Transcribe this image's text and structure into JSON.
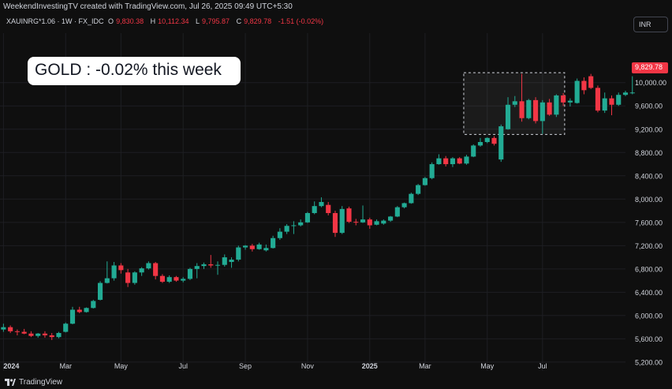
{
  "header": {
    "created_by": "WeekendInvestingTV created with TradingView.com, Jul 26, 2025 09:49 UTC+5:30",
    "symbol": "XAUINRG*1.06 · 1W · FX_IDC",
    "open_label": "O",
    "open_value": "9,830.38",
    "high_label": "H",
    "high_value": "10,112.34",
    "low_label": "L",
    "low_value": "9,795.87",
    "close_label": "C",
    "close_value": "9,829.78",
    "change": "-1.51 (-0.02%)",
    "currency": "INR"
  },
  "annotation": {
    "headline": "GOLD : -0.02% this week"
  },
  "price_tag": "9,829.78",
  "footer": {
    "brand": "TradingView"
  },
  "colors": {
    "up": "#22ab94",
    "down": "#f23645",
    "grid": "#1e1f23",
    "text": "#d1d4dc",
    "background": "#0f0f0f"
  },
  "chart_data": {
    "type": "candlestick",
    "title": "",
    "y_ticks": [
      5200,
      5600,
      6000,
      6400,
      6800,
      7200,
      7600,
      8000,
      8400,
      8800,
      9200,
      9600,
      10000
    ],
    "y_tick_labels": [
      "5,200.00",
      "5,600.00",
      "6,000.00",
      "6,400.00",
      "6,800.00",
      "7,200.00",
      "7,600.00",
      "8,000.00",
      "8,400.00",
      "8,800.00",
      "9,200.00",
      "9,600.00",
      "10,000.00"
    ],
    "ylim": [
      5050,
      10850
    ],
    "x_labels": [
      {
        "label": "2024",
        "week": 0,
        "bold": true
      },
      {
        "label": "Mar",
        "week": 9,
        "bold": false
      },
      {
        "label": "May",
        "week": 17,
        "bold": false
      },
      {
        "label": "Jul",
        "week": 26,
        "bold": false
      },
      {
        "label": "Sep",
        "week": 35,
        "bold": false
      },
      {
        "label": "Nov",
        "week": 44,
        "bold": false
      },
      {
        "label": "2025",
        "week": 53,
        "bold": true
      },
      {
        "label": "Mar",
        "week": 61,
        "bold": false
      },
      {
        "label": "May",
        "week": 70,
        "bold": false
      },
      {
        "label": "Jul",
        "week": 78,
        "bold": false
      }
    ],
    "x_range": [
      -0.5,
      90
    ],
    "range_box": {
      "week_start": 66.6,
      "week_end": 81.2,
      "price_low": 9110,
      "price_high": 10170
    },
    "last_price": 9829.78,
    "candles": [
      {
        "o": 5760,
        "h": 5860,
        "l": 5720,
        "c": 5800
      },
      {
        "o": 5800,
        "h": 5830,
        "l": 5700,
        "c": 5730
      },
      {
        "o": 5730,
        "h": 5760,
        "l": 5660,
        "c": 5720
      },
      {
        "o": 5720,
        "h": 5770,
        "l": 5680,
        "c": 5690
      },
      {
        "o": 5690,
        "h": 5730,
        "l": 5630,
        "c": 5650
      },
      {
        "o": 5650,
        "h": 5700,
        "l": 5620,
        "c": 5690
      },
      {
        "o": 5690,
        "h": 5730,
        "l": 5620,
        "c": 5660
      },
      {
        "o": 5660,
        "h": 5700,
        "l": 5580,
        "c": 5630
      },
      {
        "o": 5630,
        "h": 5720,
        "l": 5610,
        "c": 5700
      },
      {
        "o": 5720,
        "h": 5880,
        "l": 5710,
        "c": 5860
      },
      {
        "o": 5860,
        "h": 6150,
        "l": 5850,
        "c": 6100
      },
      {
        "o": 6100,
        "h": 6150,
        "l": 6040,
        "c": 6060
      },
      {
        "o": 6060,
        "h": 6140,
        "l": 6050,
        "c": 6130
      },
      {
        "o": 6130,
        "h": 6270,
        "l": 6120,
        "c": 6250
      },
      {
        "o": 6270,
        "h": 6590,
        "l": 6260,
        "c": 6560
      },
      {
        "o": 6560,
        "h": 6930,
        "l": 6550,
        "c": 6640
      },
      {
        "o": 6640,
        "h": 6920,
        "l": 6600,
        "c": 6860
      },
      {
        "o": 6860,
        "h": 6900,
        "l": 6720,
        "c": 6780
      },
      {
        "o": 6740,
        "h": 6800,
        "l": 6490,
        "c": 6560
      },
      {
        "o": 6560,
        "h": 6760,
        "l": 6530,
        "c": 6740
      },
      {
        "o": 6740,
        "h": 6830,
        "l": 6680,
        "c": 6810
      },
      {
        "o": 6810,
        "h": 6930,
        "l": 6790,
        "c": 6900
      },
      {
        "o": 6900,
        "h": 6920,
        "l": 6620,
        "c": 6680
      },
      {
        "o": 6680,
        "h": 6710,
        "l": 6560,
        "c": 6580
      },
      {
        "o": 6580,
        "h": 6690,
        "l": 6560,
        "c": 6660
      },
      {
        "o": 6660,
        "h": 6680,
        "l": 6580,
        "c": 6600
      },
      {
        "o": 6600,
        "h": 6660,
        "l": 6570,
        "c": 6630
      },
      {
        "o": 6630,
        "h": 6820,
        "l": 6610,
        "c": 6800
      },
      {
        "o": 6800,
        "h": 6900,
        "l": 6640,
        "c": 6850
      },
      {
        "o": 6850,
        "h": 6910,
        "l": 6800,
        "c": 6880
      },
      {
        "o": 6880,
        "h": 7040,
        "l": 6820,
        "c": 6860
      },
      {
        "o": 6860,
        "h": 6930,
        "l": 6700,
        "c": 6870
      },
      {
        "o": 6870,
        "h": 7050,
        "l": 6840,
        "c": 7000
      },
      {
        "o": 6920,
        "h": 7000,
        "l": 6820,
        "c": 6960
      },
      {
        "o": 6960,
        "h": 7200,
        "l": 6930,
        "c": 7170
      },
      {
        "o": 7170,
        "h": 7210,
        "l": 7130,
        "c": 7200
      },
      {
        "o": 7200,
        "h": 7230,
        "l": 7100,
        "c": 7140
      },
      {
        "o": 7140,
        "h": 7250,
        "l": 7130,
        "c": 7220
      },
      {
        "o": 7120,
        "h": 7220,
        "l": 7100,
        "c": 7160
      },
      {
        "o": 7160,
        "h": 7370,
        "l": 7150,
        "c": 7330
      },
      {
        "o": 7330,
        "h": 7500,
        "l": 7300,
        "c": 7440
      },
      {
        "o": 7440,
        "h": 7570,
        "l": 7400,
        "c": 7540
      },
      {
        "o": 7540,
        "h": 7620,
        "l": 7400,
        "c": 7550
      },
      {
        "o": 7550,
        "h": 7650,
        "l": 7530,
        "c": 7600
      },
      {
        "o": 7600,
        "h": 7780,
        "l": 7590,
        "c": 7760
      },
      {
        "o": 7760,
        "h": 7960,
        "l": 7740,
        "c": 7880
      },
      {
        "o": 7880,
        "h": 8030,
        "l": 7860,
        "c": 7950
      },
      {
        "o": 7900,
        "h": 7950,
        "l": 7720,
        "c": 7760
      },
      {
        "o": 7760,
        "h": 7800,
        "l": 7350,
        "c": 7420
      },
      {
        "o": 7420,
        "h": 7880,
        "l": 7400,
        "c": 7830
      },
      {
        "o": 7840,
        "h": 7870,
        "l": 7590,
        "c": 7610
      },
      {
        "o": 7610,
        "h": 7660,
        "l": 7550,
        "c": 7600
      },
      {
        "o": 7600,
        "h": 7890,
        "l": 7590,
        "c": 7650
      },
      {
        "o": 7650,
        "h": 7680,
        "l": 7490,
        "c": 7550
      },
      {
        "o": 7560,
        "h": 7650,
        "l": 7550,
        "c": 7620
      },
      {
        "o": 7580,
        "h": 7650,
        "l": 7560,
        "c": 7630
      },
      {
        "o": 7630,
        "h": 7710,
        "l": 7610,
        "c": 7700
      },
      {
        "o": 7700,
        "h": 7880,
        "l": 7690,
        "c": 7860
      },
      {
        "o": 7860,
        "h": 7940,
        "l": 7840,
        "c": 7930
      },
      {
        "o": 7930,
        "h": 8110,
        "l": 7920,
        "c": 8090
      },
      {
        "o": 8090,
        "h": 8260,
        "l": 8070,
        "c": 8240
      },
      {
        "o": 8240,
        "h": 8380,
        "l": 8230,
        "c": 8360
      },
      {
        "o": 8360,
        "h": 8630,
        "l": 8340,
        "c": 8600
      },
      {
        "o": 8600,
        "h": 8770,
        "l": 8590,
        "c": 8700
      },
      {
        "o": 8700,
        "h": 8740,
        "l": 8560,
        "c": 8600
      },
      {
        "o": 8600,
        "h": 8720,
        "l": 8550,
        "c": 8700
      },
      {
        "o": 8700,
        "h": 8720,
        "l": 8600,
        "c": 8610
      },
      {
        "o": 8610,
        "h": 8760,
        "l": 8590,
        "c": 8730
      },
      {
        "o": 8730,
        "h": 8940,
        "l": 8720,
        "c": 8920
      },
      {
        "o": 8920,
        "h": 9050,
        "l": 8900,
        "c": 8980
      },
      {
        "o": 8980,
        "h": 9060,
        "l": 8960,
        "c": 9050
      },
      {
        "o": 9050,
        "h": 9080,
        "l": 8920,
        "c": 8950
      },
      {
        "o": 8680,
        "h": 9280,
        "l": 8640,
        "c": 9250
      },
      {
        "o": 9200,
        "h": 9750,
        "l": 9190,
        "c": 9620
      },
      {
        "o": 9620,
        "h": 9770,
        "l": 9580,
        "c": 9680
      },
      {
        "o": 9680,
        "h": 10150,
        "l": 9330,
        "c": 9390
      },
      {
        "o": 9390,
        "h": 9720,
        "l": 9370,
        "c": 9700
      },
      {
        "o": 9700,
        "h": 9750,
        "l": 9300,
        "c": 9340
      },
      {
        "o": 9340,
        "h": 9700,
        "l": 9120,
        "c": 9660
      },
      {
        "o": 9660,
        "h": 9720,
        "l": 9430,
        "c": 9450
      },
      {
        "o": 9450,
        "h": 9800,
        "l": 9410,
        "c": 9780
      },
      {
        "o": 9780,
        "h": 9820,
        "l": 9600,
        "c": 9660
      },
      {
        "o": 9660,
        "h": 9730,
        "l": 9590,
        "c": 9690
      },
      {
        "o": 9650,
        "h": 10070,
        "l": 9640,
        "c": 10030
      },
      {
        "o": 10030,
        "h": 10090,
        "l": 9800,
        "c": 9870
      },
      {
        "o": 10110,
        "h": 10150,
        "l": 9890,
        "c": 9910
      },
      {
        "o": 9910,
        "h": 9950,
        "l": 9490,
        "c": 9520
      },
      {
        "o": 9520,
        "h": 9830,
        "l": 9480,
        "c": 9730
      },
      {
        "o": 9730,
        "h": 9780,
        "l": 9440,
        "c": 9620
      },
      {
        "o": 9620,
        "h": 9830,
        "l": 9600,
        "c": 9790
      },
      {
        "o": 9790,
        "h": 9860,
        "l": 9770,
        "c": 9830
      },
      {
        "o": 9830,
        "h": 10110,
        "l": 9800,
        "c": 9830
      }
    ]
  }
}
